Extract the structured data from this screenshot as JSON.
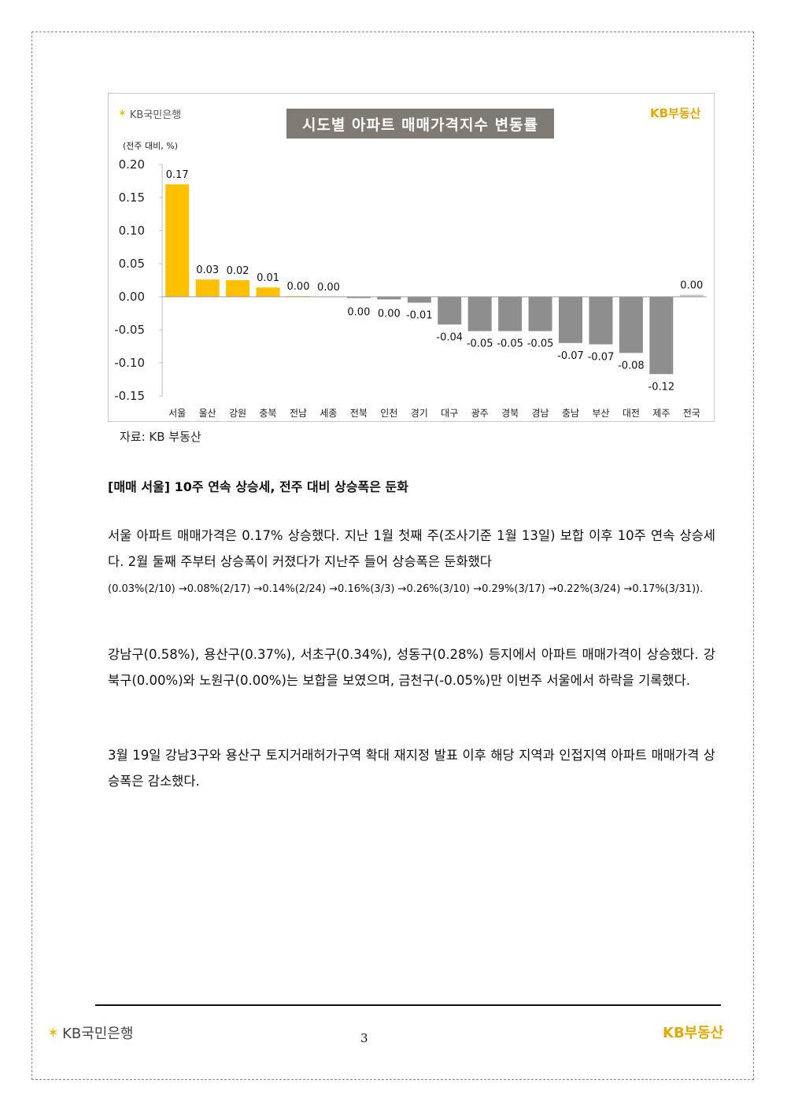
{
  "chart_data": {
    "type": "bar",
    "title": "시도별 아파트 매매가격지수 변동률",
    "unit_label": "(전주 대비, %)",
    "categories": [
      "서울",
      "울산",
      "강원",
      "충북",
      "전남",
      "세종",
      "전북",
      "인천",
      "경기",
      "대구",
      "광주",
      "경북",
      "경남",
      "충남",
      "부산",
      "대전",
      "제주",
      "전국"
    ],
    "values": [
      0.17,
      0.026,
      0.025,
      0.014,
      0.001,
      0.0,
      -0.002,
      -0.004,
      -0.009,
      -0.042,
      -0.052,
      -0.052,
      -0.052,
      -0.07,
      -0.072,
      -0.085,
      -0.117,
      0.003
    ],
    "data_labels": [
      "0.17",
      "0.03",
      "0.02",
      "0.01",
      "0.00",
      "0.00",
      "0.00",
      "0.00",
      "-0.01",
      "-0.04",
      "-0.05",
      "-0.05",
      "-0.05",
      "-0.07",
      "-0.07",
      "-0.08",
      "-0.12",
      "0.00"
    ],
    "y_ticks": [
      "0.20",
      "0.15",
      "0.10",
      "0.05",
      "0.00",
      "-0.05",
      "-0.10",
      "-0.15"
    ],
    "ylim": [
      -0.15,
      0.2
    ],
    "colors": {
      "positive": "#ffc000",
      "negative": "#8e8e8e",
      "national": "#c9c9c9"
    },
    "grid": false,
    "xlabel": "",
    "ylabel": ""
  },
  "chart_logos": {
    "bank": "KB국민은행",
    "realestate": "KB부동산"
  },
  "source": "자료: KB 부동산",
  "heading": "[매매 서울] 10주 연속 상승세, 전주 대비 상승폭은 둔화",
  "paragraph1": {
    "text": "서울 아파트 매매가격은 0.17% 상승했다. 지난 1월 첫째 주(조사기준 1월 13일) 보합 이후 10주 연속 상승세다. 2월 둘째 주부터 상승폭이 커졌다가 지난주 들어 상승폭은 둔화했다",
    "detail": "(0.03%(2/10) →0.08%(2/17) →0.14%(2/24) →0.16%(3/3) →0.26%(3/10) →0.29%(3/17) →0.22%(3/24) →0.17%(3/31))."
  },
  "paragraph2": "강남구(0.58%), 용산구(0.37%), 서초구(0.34%), 성동구(0.28%) 등지에서 아파트 매매가격이 상승했다. 강북구(0.00%)와 노원구(0.00%)는 보합을 보였으며, 금천구(-0.05%)만 이번주 서울에서 하락을 기록했다.",
  "paragraph3": "3월 19일 강남3구와 용산구 토지거래허가구역 확대 재지정 발표 이후 해당 지역과 인접지역 아파트 매매가격 상승폭은 감소했다.",
  "footer": {
    "bank": "KB국민은행",
    "realestate": "KB부동산",
    "page_number": "3"
  }
}
